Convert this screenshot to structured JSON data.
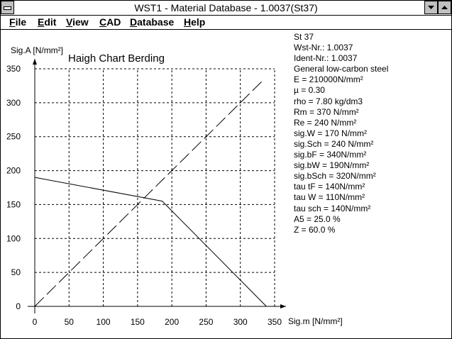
{
  "window": {
    "title": "WST1  -  Material Database - 1.0037(St37)"
  },
  "menu": [
    "File",
    "Edit",
    "View",
    "CAD",
    "Database",
    "Help"
  ],
  "chart_data": {
    "type": "line",
    "title": "Haigh Chart Berding",
    "x_label": "Sig.m [N/mm²]",
    "y_label": "Sig.A [N/mm²]",
    "xlim": [
      0,
      350
    ],
    "ylim": [
      0,
      350
    ],
    "xticks": [
      0,
      50,
      100,
      150,
      200,
      250,
      300,
      350
    ],
    "yticks": [
      0,
      50,
      100,
      150,
      200,
      250,
      300,
      350
    ],
    "grid": true,
    "series": [
      {
        "color": "#000000",
        "dash": false,
        "x": [
          0,
          186,
          338
        ],
        "values": [
          190,
          155,
          0
        ]
      },
      {
        "color": "#000000",
        "dash": true,
        "x": [
          0,
          335
        ],
        "values": [
          0,
          335
        ]
      }
    ]
  },
  "properties": [
    "St 37",
    "Wst-Nr.: 1.0037",
    "Ident-Nr.: 1.0037",
    "General low-carbon steel",
    "E = 210000N/mm²",
    "µ =  0.30",
    "rho =  7.80 kg/dm3",
    "Rm =  370 N/mm²",
    "Re =  240 N/mm²",
    "sig.W =  170 N/mm²",
    "sig.Sch =  240 N/mm²",
    "sig.bF =  340N/mm²",
    "sig.bW =  190N/mm²",
    "sig.bSch =  320N/mm²",
    "tau tF =  140N/mm²",
    "tau W =  110N/mm²",
    "tau sch =  140N/mm²",
    "A5 = 25.0 %",
    "Z = 60.0 %"
  ]
}
